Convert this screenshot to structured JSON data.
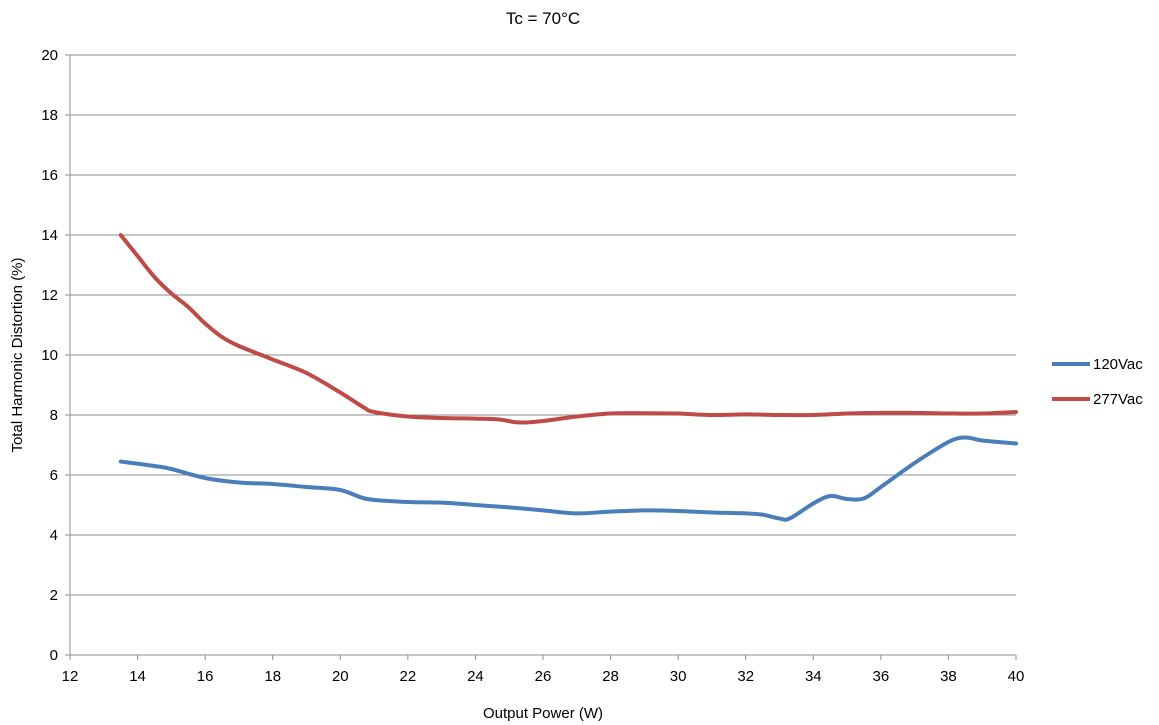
{
  "chart_data": {
    "type": "line",
    "title": "Tc = 70°C",
    "xlabel": "Output Power (W)",
    "ylabel": "Total Harmonic Distortion (%)",
    "xlim": [
      12,
      40
    ],
    "ylim": [
      0,
      20
    ],
    "xticks": [
      12,
      14,
      16,
      18,
      20,
      22,
      24,
      26,
      28,
      30,
      32,
      34,
      36,
      38,
      40
    ],
    "yticks": [
      0,
      2,
      4,
      6,
      8,
      10,
      12,
      14,
      16,
      18,
      20
    ],
    "grid": true,
    "legend_position": "right",
    "series": [
      {
        "name": "120Vac",
        "color": "#4a7ebb",
        "x": [
          13.5,
          14.5,
          15,
          16,
          17,
          18,
          19,
          20,
          20.8,
          22,
          23,
          24,
          25,
          26,
          27,
          28,
          29,
          30,
          31,
          32,
          32.5,
          33,
          33.3,
          34,
          34.5,
          35,
          35.5,
          36,
          37,
          38,
          38.5,
          39,
          40
        ],
        "y": [
          6.45,
          6.3,
          6.2,
          5.9,
          5.75,
          5.7,
          5.6,
          5.5,
          5.2,
          5.1,
          5.08,
          5.0,
          4.92,
          4.82,
          4.72,
          4.78,
          4.82,
          4.8,
          4.75,
          4.72,
          4.68,
          4.55,
          4.55,
          5.05,
          5.3,
          5.2,
          5.22,
          5.6,
          6.4,
          7.1,
          7.25,
          7.15,
          7.05
        ]
      },
      {
        "name": "277Vac",
        "color": "#be4b48",
        "x": [
          13.5,
          14,
          14.5,
          15,
          15.5,
          16,
          16.5,
          17,
          18,
          19,
          20,
          20.7,
          21,
          22,
          23,
          24,
          24.7,
          25.3,
          26,
          27,
          28,
          29,
          30,
          31,
          32,
          33,
          34,
          35,
          36,
          37,
          38,
          39,
          40
        ],
        "y": [
          14.0,
          13.3,
          12.6,
          12.05,
          11.6,
          11.05,
          10.6,
          10.3,
          9.85,
          9.4,
          8.75,
          8.25,
          8.1,
          7.95,
          7.9,
          7.88,
          7.85,
          7.75,
          7.8,
          7.95,
          8.05,
          8.06,
          8.05,
          8.0,
          8.02,
          8.0,
          8.0,
          8.05,
          8.07,
          8.07,
          8.05,
          8.05,
          8.1
        ]
      }
    ]
  }
}
